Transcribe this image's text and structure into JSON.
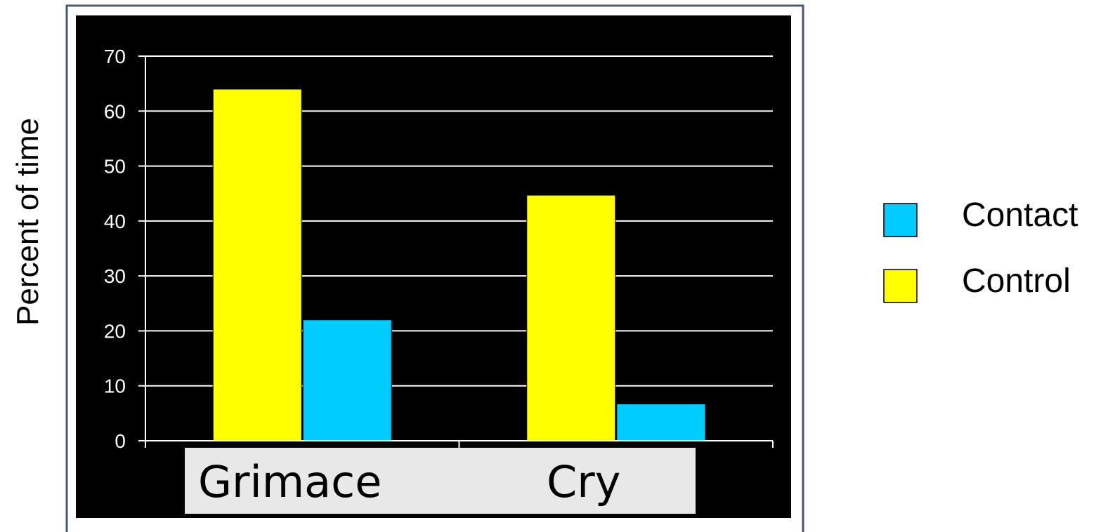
{
  "chart_data": {
    "type": "bar",
    "categories": [
      "Grimace",
      "Cry"
    ],
    "series": [
      {
        "name": "Control",
        "values": [
          64,
          44.7
        ],
        "color": "#ffff00"
      },
      {
        "name": "Contact",
        "values": [
          22,
          6.7
        ],
        "color": "#00ccff"
      }
    ],
    "ylabel": "Percent of time",
    "xlabel": "",
    "ylim": [
      0,
      70
    ],
    "yticks": [
      "0",
      "10",
      "20",
      "30",
      "40",
      "50",
      "60",
      "70"
    ],
    "grid": true,
    "legend": {
      "position": "right",
      "entries": [
        {
          "label": "Contact",
          "color": "#00ccff"
        },
        {
          "label": "Control",
          "color": "#ffff00"
        }
      ]
    },
    "colors": {
      "plot_background": "#000000",
      "frame_border": "#4a5870",
      "category_band": "#e8e8e8"
    }
  }
}
